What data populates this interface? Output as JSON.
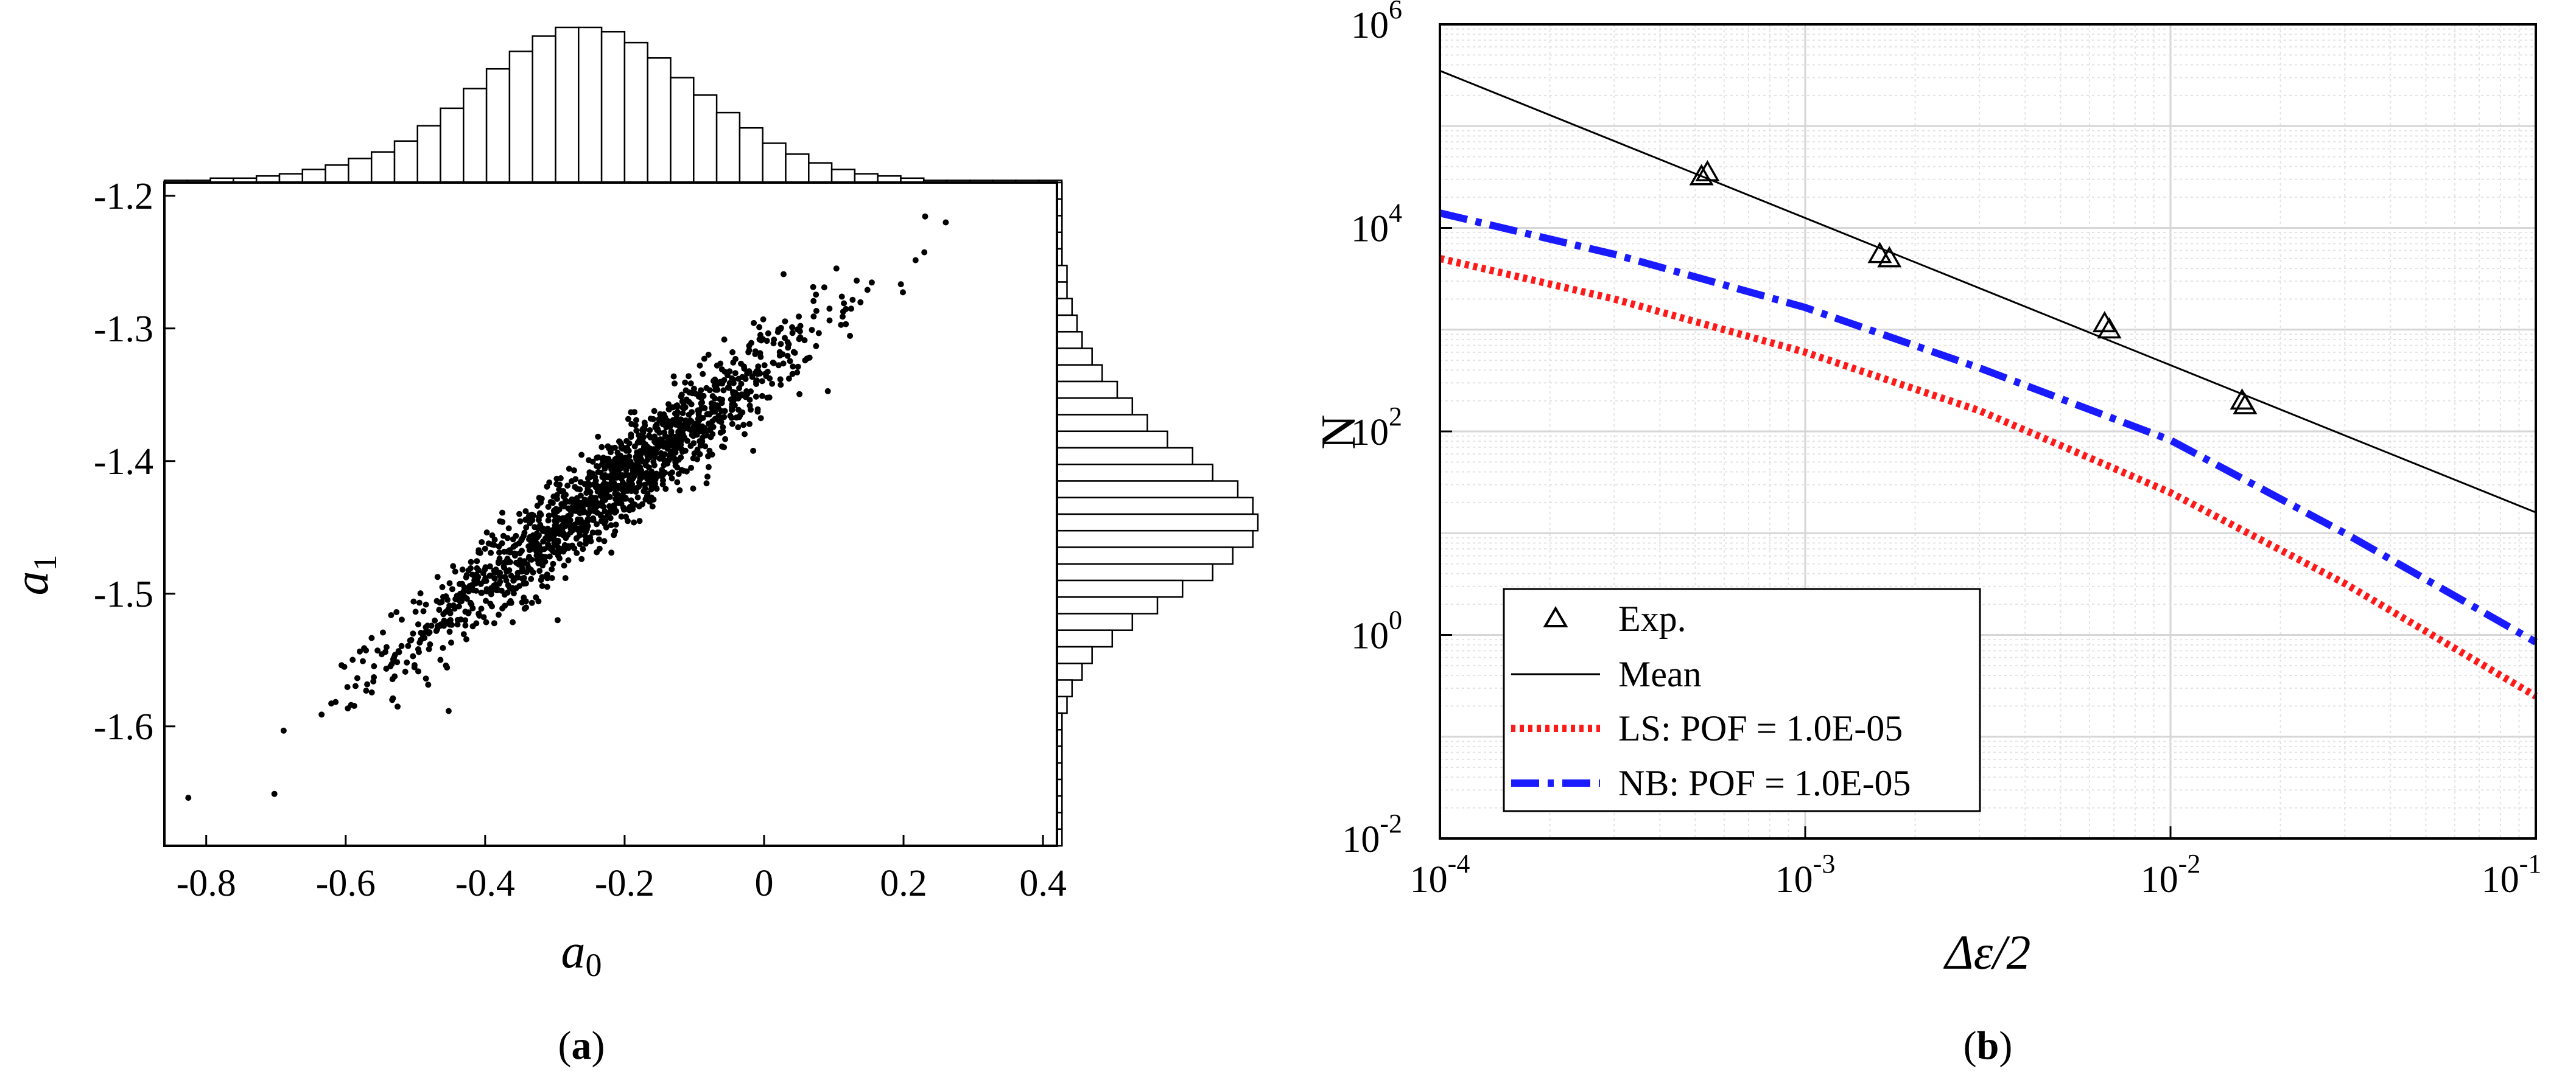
{
  "chart_data": [
    {
      "id": "a",
      "type": "scatter",
      "caption_open": "(",
      "caption_letter": "a",
      "caption_close": ")",
      "xlabel_main": "a",
      "xlabel_sub": "0",
      "ylabel_main": "a",
      "ylabel_sub": "1",
      "xlim": [
        -0.86,
        0.42
      ],
      "ylim": [
        -1.69,
        -1.19
      ],
      "xticks": [
        -0.8,
        -0.6,
        -0.4,
        -0.2,
        0,
        0.2,
        0.4
      ],
      "xtick_labels": [
        "-0.8",
        "-0.6",
        "-0.4",
        "-0.2",
        "0",
        "0.2",
        "0.4"
      ],
      "yticks": [
        -1.2,
        -1.3,
        -1.4,
        -1.5,
        -1.6
      ],
      "ytick_labels": [
        "-1.2",
        "-1.3",
        "-1.4",
        "-1.5",
        "-1.6"
      ],
      "scatter_model": {
        "n_points": 1500,
        "mean_x": -0.22,
        "std_x": 0.15,
        "slope": 0.4,
        "intercept": -1.332,
        "residual_std": 0.018
      },
      "hist_top": {
        "bin_start": -0.86,
        "bin_width": 0.033,
        "counts": [
          1,
          1,
          2,
          2,
          3,
          4,
          6,
          8,
          11,
          14,
          19,
          26,
          34,
          43,
          52,
          60,
          67,
          71,
          71,
          69,
          64,
          57,
          48,
          40,
          32,
          25,
          18,
          13,
          9,
          6,
          4,
          3,
          2,
          1,
          1,
          1,
          1,
          1,
          1
        ]
      },
      "hist_right": {
        "bin_start": -1.19,
        "bin_width": 0.0125,
        "counts": [
          1,
          1,
          1,
          1,
          1,
          2,
          2,
          3,
          4,
          5,
          7,
          9,
          12,
          15,
          18,
          22,
          27,
          31,
          36,
          39,
          40,
          39,
          35,
          31,
          25,
          20,
          15,
          11,
          7,
          5,
          3,
          2,
          1,
          1,
          1,
          1,
          1,
          1,
          1,
          1
        ]
      }
    },
    {
      "id": "b",
      "type": "line",
      "caption_open": "(",
      "caption_letter": "b",
      "caption_close": ")",
      "xlabel": "Δε/2",
      "ylabel": "N",
      "xscale": "log",
      "yscale": "log",
      "xlim_exp": [
        -4,
        -1
      ],
      "ylim_exp": [
        -2,
        6
      ],
      "x_ticks": [
        {
          "base": "10",
          "exp": "-4"
        },
        {
          "base": "10",
          "exp": "-3"
        },
        {
          "base": "10",
          "exp": "-2"
        },
        {
          "base": "10",
          "exp": "-1"
        }
      ],
      "y_ticks": [
        {
          "base": "10",
          "exp": "-2"
        },
        {
          "base": "10",
          "exp": "0"
        },
        {
          "base": "10",
          "exp": "2"
        },
        {
          "base": "10",
          "exp": "4"
        },
        {
          "base": "10",
          "exp": "6"
        }
      ],
      "grid": true,
      "legend_position": "lower-left",
      "series": [
        {
          "name": "Exp.",
          "style": "markers",
          "color": "#000000",
          "x": [
            0.00052,
            0.00054,
            0.0016,
            0.0017,
            0.0066,
            0.0068,
            0.0157,
            0.016
          ],
          "y": [
            32000,
            35000,
            5500,
            5000,
            1150,
            1000,
            200,
            180
          ]
        },
        {
          "name": "Mean",
          "style": "solid",
          "color": "#000000",
          "x": [
            0.0001,
            0.1
          ],
          "y": [
            350000,
            16
          ]
        },
        {
          "name": "LS: POF = 1.0E-05",
          "style": "dotted",
          "color": "#ff1a1a",
          "x": [
            0.0001,
            0.0003,
            0.001,
            0.003,
            0.01,
            0.03,
            0.1
          ],
          "y": [
            5000,
            2000,
            600,
            160,
            25,
            3.2,
            0.25
          ]
        },
        {
          "name": "NB: POF = 1.0E-05",
          "style": "dashdot",
          "color": "#1a1aff",
          "x": [
            0.0001,
            0.0003,
            0.001,
            0.003,
            0.01,
            0.03,
            0.1
          ],
          "y": [
            14000,
            5500,
            1650,
            420,
            82,
            10,
            0.85
          ]
        }
      ]
    }
  ]
}
